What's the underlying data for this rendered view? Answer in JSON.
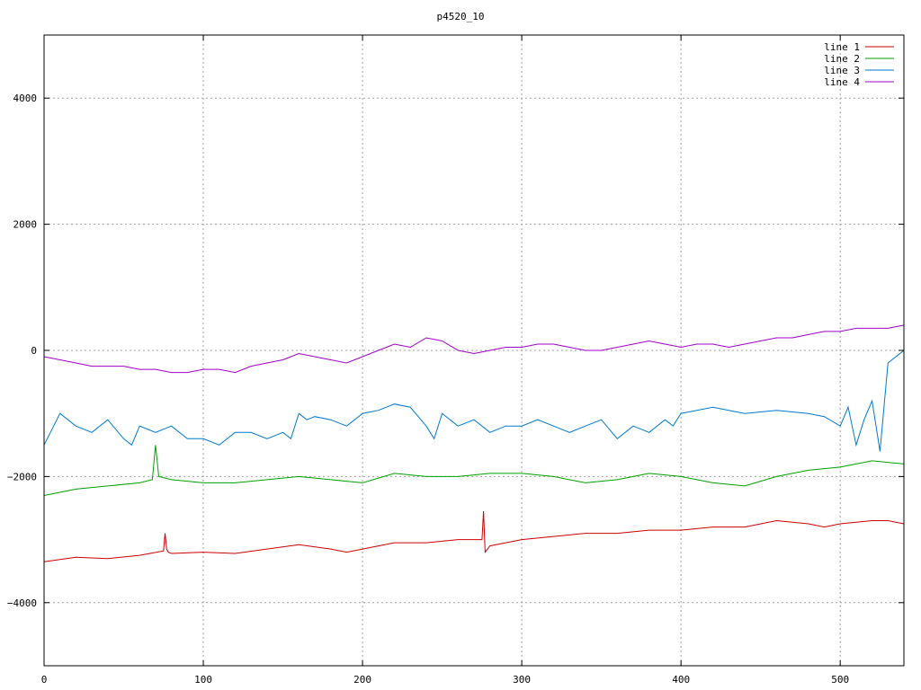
{
  "chart_data": {
    "type": "line",
    "title": "p4520_10",
    "xlabel": "",
    "ylabel": "",
    "xlim": [
      0,
      540
    ],
    "ylim": [
      -5000,
      5000
    ],
    "x_ticks": [
      0,
      100,
      200,
      300,
      400,
      500
    ],
    "y_ticks": [
      -4000,
      -2000,
      0,
      2000,
      4000
    ],
    "grid": true,
    "legend_position": "top-right",
    "series": [
      {
        "name": "line 1",
        "color": "#cc0000",
        "x": [
          0,
          20,
          40,
          60,
          75,
          76,
          77,
          78,
          80,
          100,
          120,
          140,
          160,
          180,
          190,
          200,
          220,
          240,
          260,
          270,
          275,
          276,
          277,
          280,
          300,
          320,
          340,
          360,
          380,
          400,
          420,
          440,
          460,
          480,
          490,
          500,
          520,
          530,
          540
        ],
        "values": [
          -3350,
          -3280,
          -3300,
          -3250,
          -3180,
          -2900,
          -3150,
          -3200,
          -3220,
          -3200,
          -3220,
          -3150,
          -3080,
          -3150,
          -3200,
          -3150,
          -3050,
          -3050,
          -3000,
          -3000,
          -3000,
          -2550,
          -3200,
          -3100,
          -3000,
          -2950,
          -2900,
          -2900,
          -2850,
          -2850,
          -2800,
          -2800,
          -2700,
          -2750,
          -2800,
          -2750,
          -2700,
          -2700,
          -2750
        ]
      },
      {
        "name": "line 2",
        "color": "#00a000",
        "x": [
          0,
          20,
          40,
          60,
          68,
          70,
          72,
          80,
          100,
          120,
          140,
          160,
          180,
          200,
          220,
          240,
          260,
          280,
          300,
          320,
          340,
          360,
          380,
          400,
          420,
          440,
          460,
          480,
          500,
          510,
          520,
          540
        ],
        "values": [
          -2300,
          -2200,
          -2150,
          -2100,
          -2050,
          -1500,
          -2000,
          -2050,
          -2100,
          -2100,
          -2050,
          -2000,
          -2050,
          -2100,
          -1950,
          -2000,
          -2000,
          -1950,
          -1950,
          -2000,
          -2100,
          -2050,
          -1950,
          -2000,
          -2100,
          -2150,
          -2000,
          -1900,
          -1850,
          -1800,
          -1750,
          -1800
        ]
      },
      {
        "name": "line 3",
        "color": "#0078d0",
        "x": [
          0,
          10,
          20,
          30,
          40,
          50,
          55,
          60,
          70,
          80,
          90,
          100,
          110,
          120,
          130,
          140,
          150,
          155,
          160,
          165,
          170,
          180,
          190,
          200,
          210,
          220,
          230,
          240,
          245,
          250,
          260,
          270,
          280,
          290,
          300,
          310,
          320,
          330,
          340,
          350,
          360,
          370,
          380,
          390,
          395,
          400,
          420,
          440,
          460,
          480,
          490,
          500,
          505,
          510,
          515,
          520,
          525,
          530,
          535,
          540
        ],
        "values": [
          -1500,
          -1000,
          -1200,
          -1300,
          -1100,
          -1400,
          -1500,
          -1200,
          -1300,
          -1200,
          -1400,
          -1400,
          -1500,
          -1300,
          -1300,
          -1400,
          -1300,
          -1400,
          -1000,
          -1100,
          -1050,
          -1100,
          -1200,
          -1000,
          -950,
          -850,
          -900,
          -1200,
          -1400,
          -1000,
          -1200,
          -1100,
          -1300,
          -1200,
          -1200,
          -1100,
          -1200,
          -1300,
          -1200,
          -1100,
          -1400,
          -1200,
          -1300,
          -1100,
          -1200,
          -1000,
          -900,
          -1000,
          -950,
          -1000,
          -1050,
          -1200,
          -900,
          -1500,
          -1100,
          -800,
          -1600,
          -200,
          -100,
          0
        ]
      },
      {
        "name": "line 4",
        "color": "#a000c8",
        "x": [
          0,
          10,
          20,
          30,
          40,
          50,
          60,
          70,
          80,
          90,
          100,
          110,
          120,
          130,
          140,
          150,
          160,
          170,
          180,
          190,
          200,
          210,
          220,
          230,
          240,
          250,
          260,
          270,
          280,
          290,
          300,
          310,
          320,
          330,
          340,
          350,
          360,
          370,
          380,
          390,
          400,
          410,
          420,
          430,
          440,
          450,
          460,
          470,
          480,
          490,
          500,
          510,
          520,
          530,
          540
        ],
        "values": [
          -100,
          -150,
          -200,
          -250,
          -250,
          -250,
          -300,
          -300,
          -350,
          -350,
          -300,
          -300,
          -350,
          -250,
          -200,
          -150,
          -50,
          -100,
          -150,
          -200,
          -100,
          0,
          100,
          50,
          200,
          150,
          0,
          -50,
          0,
          50,
          50,
          100,
          100,
          50,
          0,
          0,
          50,
          100,
          150,
          100,
          50,
          100,
          100,
          50,
          100,
          150,
          200,
          200,
          250,
          300,
          300,
          350,
          350,
          350,
          400
        ]
      }
    ]
  }
}
